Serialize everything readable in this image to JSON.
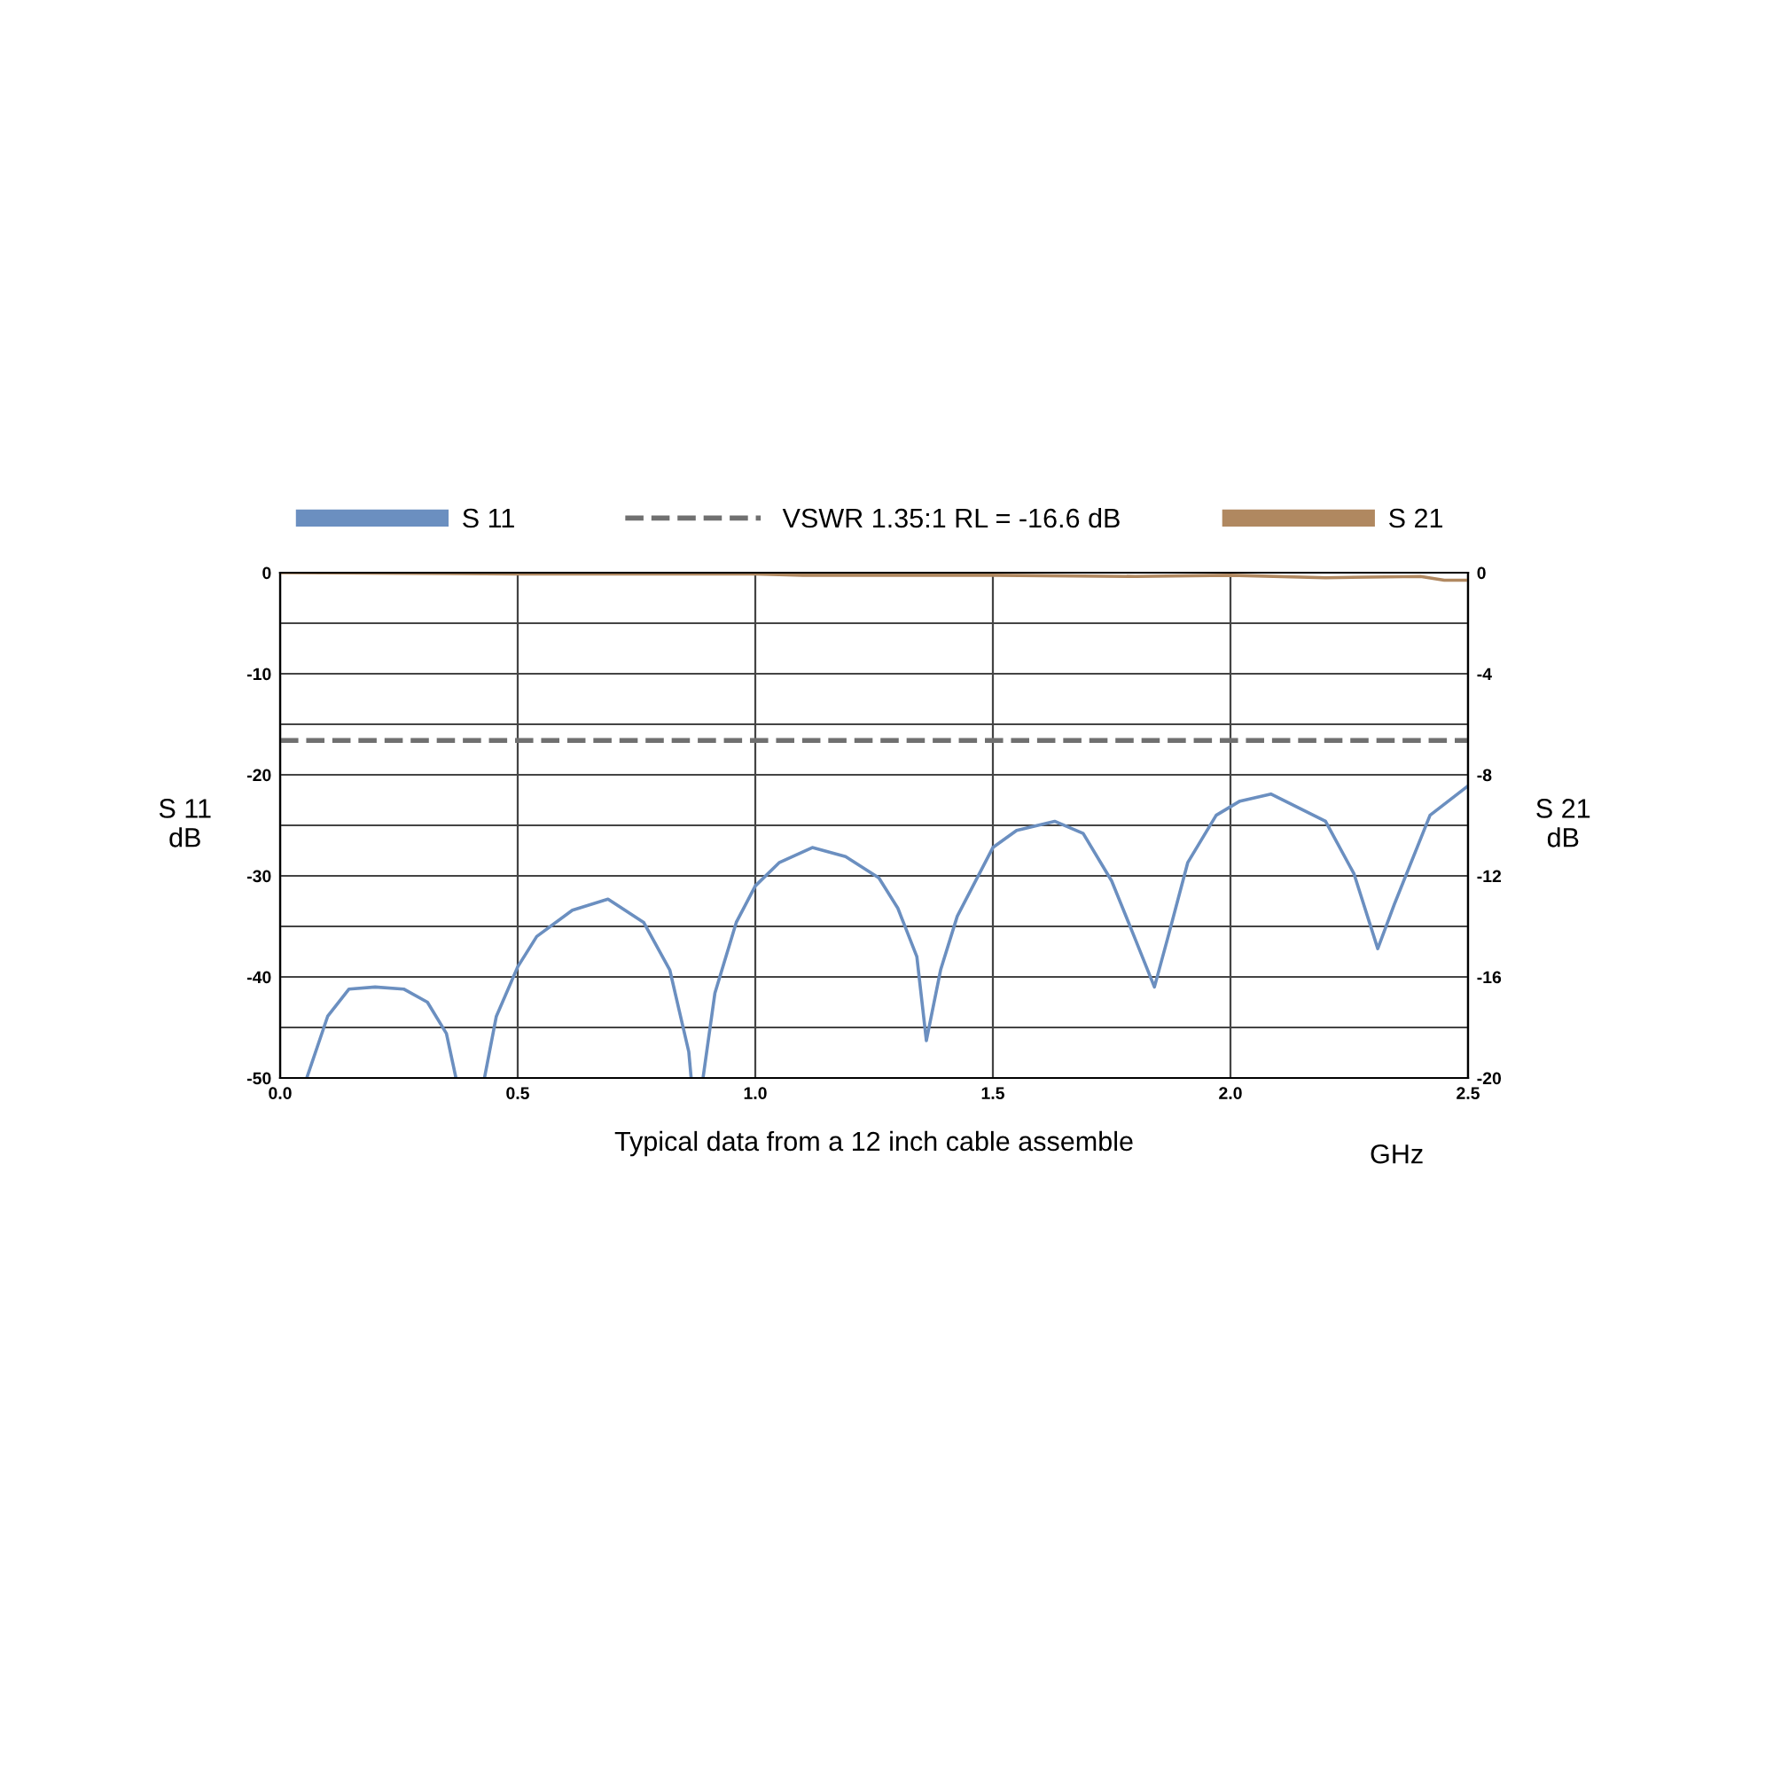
{
  "chart_data": {
    "type": "line",
    "xlabel": "GHz",
    "ylabel": "S 11\ndB",
    "y2label": "S 21\ndB",
    "annotations": [
      "Typical data from a 12 inch cable assemble"
    ],
    "xlim": [
      0.0,
      2.5
    ],
    "xticks": [
      {
        "value": 0,
        "label": "0.0"
      },
      0.5,
      {
        "value": 1,
        "label": "1.0"
      },
      1.5,
      {
        "value": 2,
        "label": "2.0"
      },
      2.5
    ],
    "ylim": [
      -50,
      0
    ],
    "yticks": [
      -50,
      {
        "value": -45,
        "label": null
      },
      -40,
      {
        "value": -35,
        "label": null
      },
      -30,
      {
        "value": -25,
        "label": null
      },
      -20,
      {
        "value": -15,
        "label": null
      },
      -10,
      {
        "value": -5,
        "label": null
      },
      0
    ],
    "y2lim": [
      -20,
      0
    ],
    "y2ticks": [
      -20,
      -16,
      -12,
      -8,
      -4,
      0
    ],
    "grid": true,
    "legend": "top",
    "line_style": "solid",
    "marker": "none",
    "ref_lines": [
      {
        "axis": "y",
        "value": -16.6,
        "label": "VSWR 1.35:1 RL = -16.6 dB",
        "color": "#707070",
        "line_style": "dashed"
      }
    ],
    "series": [
      {
        "name": "S 11",
        "color": "#6b8fc0",
        "x": [
          0.056,
          0.1,
          0.145,
          0.2,
          0.26,
          0.31,
          0.35,
          0.37,
          0.4,
          0.43,
          0.455,
          0.5,
          0.54,
          0.615,
          0.69,
          0.765,
          0.82,
          0.86,
          0.865,
          0.88,
          0.89,
          0.915,
          0.96,
          1.0,
          1.05,
          1.12,
          1.19,
          1.26,
          1.3,
          1.34,
          1.36,
          1.39,
          1.425,
          1.5,
          1.55,
          1.63,
          1.69,
          1.75,
          1.8,
          1.84,
          1.87,
          1.91,
          1.97,
          2.02,
          2.085,
          2.2,
          2.26,
          2.31,
          2.345,
          2.42,
          2.5
        ],
        "values": [
          -50,
          -43.9,
          -41.2,
          -41.0,
          -41.2,
          -42.5,
          -45.6,
          -50,
          null,
          -50,
          -43.9,
          -39,
          -36,
          -33.4,
          -32.3,
          -34.6,
          -39.3,
          -47.4,
          -50,
          null,
          -50,
          -41.6,
          -34.6,
          -31,
          -28.7,
          -27.2,
          -28.1,
          -30.2,
          -33.2,
          -38,
          -46.3,
          -39.3,
          -34,
          -27.2,
          -25.5,
          -24.6,
          -25.8,
          -30.5,
          -36.3,
          -41,
          -35.8,
          -28.7,
          -24,
          -22.6,
          -21.9,
          -24.6,
          -29.8,
          -37.2,
          -32.8,
          -24,
          -21.1
        ]
      },
      {
        "name": "S 21",
        "color": "#b08860",
        "axis": "y2",
        "x": [
          0,
          0.5,
          1.0,
          1.1,
          1.5,
          1.8,
          2.0,
          2.2,
          2.4,
          2.45,
          2.5
        ],
        "values": [
          0,
          -0.05,
          -0.05,
          -0.1,
          -0.1,
          -0.15,
          -0.1,
          -0.2,
          -0.15,
          -0.3,
          -0.3
        ]
      }
    ]
  }
}
